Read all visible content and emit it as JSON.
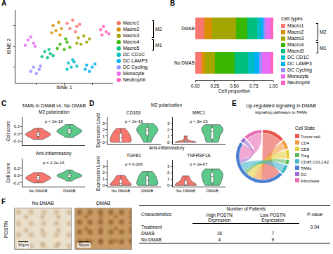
{
  "chart_data": [
    {
      "panel_label": "A",
      "type": "scatter",
      "x_label": "tSNE 1",
      "y_label": "tSNE 2",
      "tick_labels": false,
      "xlim": [
        -35,
        35
      ],
      "ylim": [
        -35,
        35
      ],
      "xticks": [
        -20,
        0,
        20
      ],
      "yticks": [
        -20,
        0,
        20
      ],
      "marker": "circle",
      "legend": "right",
      "legend_groups": [
        {
          "label": "M2",
          "members": [
            "Macro1",
            "Macro2",
            "Macro3"
          ]
        },
        {
          "label": "M1",
          "members": [
            "Macro4",
            "Macro5"
          ]
        }
      ],
      "series": [
        {
          "name": "Macro1",
          "color": "#F8766D",
          "x": [
            2,
            6,
            9,
            4,
            8,
            11
          ],
          "y": [
            22,
            25,
            19,
            17,
            14,
            21
          ]
        },
        {
          "name": "Macro2",
          "color": "#D89000",
          "x": [
            -8,
            -4,
            -6,
            -2,
            -9,
            -3
          ],
          "y": [
            20,
            23,
            15,
            17,
            13,
            11
          ]
        },
        {
          "name": "Macro3",
          "color": "#A3A500",
          "x": [
            10,
            14,
            16,
            12,
            18,
            9
          ],
          "y": [
            8,
            10,
            4,
            2,
            7,
            3
          ]
        },
        {
          "name": "Macro4",
          "color": "#39B600",
          "x": [
            -3,
            2,
            0,
            4,
            -5,
            1
          ],
          "y": [
            2,
            4,
            -3,
            -1,
            -2,
            7
          ]
        },
        {
          "name": "Macro5",
          "color": "#00BF7D",
          "x": [
            -14,
            -10,
            -12,
            -8,
            -16,
            -11
          ],
          "y": [
            -5,
            -7,
            -11,
            -9,
            -10,
            -3
          ]
        },
        {
          "name": "DC CD1C",
          "color": "#00BFC4",
          "x": [
            3,
            7,
            5,
            9,
            2,
            6
          ],
          "y": [
            -16,
            -15,
            -20,
            -19,
            -22,
            -13
          ]
        },
        {
          "name": "DC LAMP3",
          "color": "#00B0F6",
          "x": [
            16,
            20,
            18,
            22,
            15
          ],
          "y": [
            -18,
            -20,
            -24,
            -17,
            -22
          ]
        },
        {
          "name": "DC Cycling",
          "color": "#9590FF",
          "x": [
            -22,
            -18,
            -20,
            -24,
            -17
          ],
          "y": [
            -20,
            -22,
            -26,
            -24,
            -19
          ]
        },
        {
          "name": "Monocyte",
          "color": "#E76BF3",
          "x": [
            -26,
            -22,
            -28,
            -24,
            -21
          ],
          "y": [
            6,
            3,
            1,
            9,
            0
          ]
        },
        {
          "name": "Neutrophil",
          "color": "#FF62BC",
          "x": [
            26,
            30,
            28,
            32,
            27
          ],
          "y": [
            16,
            14,
            19,
            12,
            11
          ]
        }
      ]
    },
    {
      "panel_label": "B",
      "type": "bar",
      "orientation": "horizontal",
      "stacked": true,
      "categories": [
        "DMAB",
        "No DMAB"
      ],
      "x_label": "Cell proportion",
      "legend": "right",
      "legend_title": "Cell types",
      "legend_groups": [
        {
          "label": "M2",
          "members": [
            "Macro1",
            "Macro2",
            "Macro3"
          ]
        },
        {
          "label": "M1",
          "members": [
            "Macro4",
            "Macro5"
          ]
        }
      ],
      "xlim": [
        0,
        1
      ],
      "xticks": [
        {
          "value": 0,
          "label": "0.00"
        },
        {
          "value": 0.25,
          "label": "0.25"
        },
        {
          "value": 0.5,
          "label": "0.50"
        },
        {
          "value": 0.75,
          "label": "0.75"
        },
        {
          "value": 1,
          "label": "1.00"
        }
      ],
      "series": [
        {
          "name": "Macro1",
          "color": "#F8766D",
          "values": [
            0.12,
            0.08
          ]
        },
        {
          "name": "Macro2",
          "color": "#D89000",
          "values": [
            0.1,
            0.05
          ]
        },
        {
          "name": "Macro3",
          "color": "#A3A500",
          "values": [
            0.3,
            0.12
          ]
        },
        {
          "name": "Macro4",
          "color": "#39B600",
          "values": [
            0.15,
            0.25
          ]
        },
        {
          "name": "Macro5",
          "color": "#00BF7D",
          "values": [
            0.12,
            0.18
          ]
        },
        {
          "name": "DC CD1C",
          "color": "#00BFC4",
          "values": [
            0.05,
            0.08
          ]
        },
        {
          "name": "DC LAMP3",
          "color": "#00B0F6",
          "values": [
            0.03,
            0.06
          ]
        },
        {
          "name": "DC Cycling",
          "color": "#9590FF",
          "values": [
            0.03,
            0.04
          ]
        },
        {
          "name": "Monocyte",
          "color": "#E76BF3",
          "values": [
            0.06,
            0.1
          ]
        },
        {
          "name": "Neutrophil",
          "color": "#FF62BC",
          "values": [
            0.04,
            0.04
          ]
        }
      ]
    },
    {
      "panel_label": "C",
      "type": "violin",
      "title": "TAMs in DMAB vs. No DMAB",
      "y_label": "Cell score",
      "categories": [
        "No DMAB",
        "DMAB"
      ],
      "colors": [
        "#F8766D",
        "#5CC98A"
      ],
      "panels": [
        {
          "title": "M2 polarization",
          "p_label": "p < 2e-16",
          "ylim": [
            -0.3,
            0.45
          ],
          "yticks": [
            {
              "value": -0.2,
              "label": "-0.2"
            },
            {
              "value": 0,
              "label": "0.0"
            },
            {
              "value": 0.2,
              "label": "0.2"
            }
          ],
          "values": [
            [
              -0.15,
              -0.1,
              -0.08,
              -0.05,
              -0.03,
              -0.02,
              0,
              0.01,
              0.03,
              0.06,
              0.1,
              0.15
            ],
            [
              -0.1,
              -0.04,
              0,
              0.03,
              0.05,
              0.07,
              0.08,
              0.1,
              0.12,
              0.15,
              0.2,
              0.25
            ]
          ]
        },
        {
          "title": "Anti-inflammatory",
          "p_label": "p = 2.2e-16",
          "ylim": [
            -0.3,
            0.45
          ],
          "yticks": [
            {
              "value": -0.2,
              "label": "-0.2"
            },
            {
              "value": 0,
              "label": "0.0"
            },
            {
              "value": 0.2,
              "label": "0.2"
            }
          ],
          "values": [
            [
              -0.2,
              -0.15,
              -0.12,
              -0.1,
              -0.08,
              -0.06,
              -0.05,
              -0.03,
              0,
              0.03,
              0.08
            ],
            [
              -0.15,
              -0.08,
              -0.05,
              -0.03,
              -0.02,
              0,
              0.01,
              0.03,
              0.05,
              0.08,
              0.15
            ]
          ]
        }
      ]
    },
    {
      "panel_label": "D",
      "type": "violin",
      "y_label": "Expression Level",
      "categories": [
        "No DMAB",
        "DMAB"
      ],
      "colors": [
        "#F8766D",
        "#5CC98A"
      ],
      "groups": [
        {
          "title": "M2 polarization",
          "panels": [
            {
              "title": "CD163",
              "p_label": "p < 2e-16",
              "ylim": [
                -0.2,
                4
              ],
              "yticks": [
                0,
                1,
                2,
                3
              ],
              "values": [
                [
                  0,
                  0,
                  0,
                  0.2,
                  0.5,
                  0.8,
                  1,
                  1.2,
                  1.5,
                  1.8,
                  2.2
                ],
                [
                  0,
                  0.5,
                  1,
                  1.4,
                  1.7,
                  1.9,
                  2,
                  2.2,
                  2.4,
                  2.7,
                  3
                ]
              ]
            },
            {
              "title": "MRC1",
              "p_label": "p < 2e-16",
              "ylim": [
                -0.2,
                4
              ],
              "yticks": [
                0,
                1,
                2,
                3
              ],
              "values": [
                [
                  0,
                  0,
                  0,
                  0,
                  0,
                  0,
                  0.1,
                  0.3,
                  0.6,
                  1
                ],
                [
                  0,
                  0,
                  0.5,
                  1.2,
                  1.6,
                  1.9,
                  2.1,
                  2.3,
                  2.5,
                  2.8
                ]
              ]
            }
          ]
        },
        {
          "title": "Anti-inflammatory",
          "panels": [
            {
              "title": "TGFB1",
              "p_label": "p = 0.006",
              "ylim": [
                -0.2,
                4
              ],
              "yticks": [
                0,
                1,
                2,
                3
              ],
              "values": [
                [
                  0,
                  0,
                  0,
                  0,
                  0.3,
                  0.6,
                  0.9,
                  1.2,
                  1.6
                ],
                [
                  0,
                  0,
                  0,
                  0.4,
                  0.8,
                  1.1,
                  1.4,
                  1.8,
                  2.2
                ]
              ]
            },
            {
              "title": "TNFRSF1A",
              "p_label": "p = 2e-07",
              "ylim": [
                -0.2,
                4
              ],
              "yticks": [
                0,
                1,
                2,
                3
              ],
              "values": [
                [
                  0,
                  0,
                  0,
                  0,
                  0,
                  0.3,
                  0.7,
                  1.1,
                  1.5
                ],
                [
                  0,
                  0,
                  0.6,
                  1,
                  1.4,
                  1.7,
                  2,
                  2.3,
                  2.6
                ]
              ]
            }
          ]
        }
      ]
    },
    {
      "panel_label": "E",
      "type": "chord",
      "title": "Up-regulated signaling in DMAB",
      "subtitle": "signaling pathways to TAMs",
      "legend_title": "Cell State",
      "legend": "right",
      "states": [
        {
          "name": "Tumor cell",
          "color": "#E8544E"
        },
        {
          "name": "CD4",
          "color": "#F59B42"
        },
        {
          "name": "CD8",
          "color": "#E6CF3C"
        },
        {
          "name": "Treg",
          "color": "#5DB85C"
        },
        {
          "name": "CD45 COL1A2",
          "color": "#3FB8C9"
        },
        {
          "name": "TAMs",
          "color": "#4A7FD1"
        },
        {
          "name": "DC",
          "color": "#9B6FD0"
        },
        {
          "name": "Fibroblast",
          "color": "#E66FB5"
        }
      ],
      "links": [
        {
          "source": "Tumor cell",
          "target": "TAMs",
          "value": 5
        },
        {
          "source": "CD4",
          "target": "TAMs",
          "value": 2
        },
        {
          "source": "CD8",
          "target": "TAMs",
          "value": 2
        },
        {
          "source": "Treg",
          "target": "TAMs",
          "value": 1
        },
        {
          "source": "CD45 COL1A2",
          "target": "TAMs",
          "value": 2
        },
        {
          "source": "DC",
          "target": "TAMs",
          "value": 1
        },
        {
          "source": "Fibroblast",
          "target": "TAMs",
          "value": 4
        }
      ]
    }
  ],
  "figure_f": {
    "panel_label": "F",
    "images": {
      "row_label": "POSTN",
      "columns": [
        "No DMAB",
        "DMAB"
      ],
      "scale_bar": "50μm"
    },
    "table": {
      "headers": {
        "characteristics": "Characteristics",
        "group": "Number of Patients",
        "p_value": "P-value",
        "columns": [
          "High POSTN Expression",
          "Low POSTN Expression"
        ]
      },
      "rows": [
        {
          "label": "Treatment",
          "p_value": "0.04"
        },
        {
          "label": "DMAB",
          "values": [
            16,
            7
          ]
        },
        {
          "label": "No DMAB",
          "values": [
            4,
            9
          ]
        }
      ]
    }
  }
}
